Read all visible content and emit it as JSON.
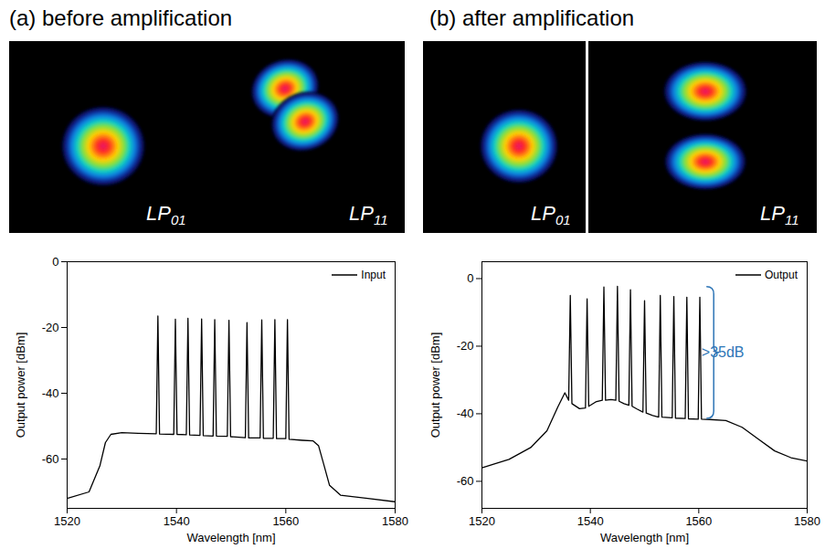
{
  "chart_data": [
    {
      "type": "line",
      "title": "(a) before amplification",
      "xlabel": "Wavelength [nm]",
      "ylabel": "Output power [dBm]",
      "xlim": [
        1520,
        1580
      ],
      "xticks": [
        1520,
        1540,
        1560,
        1580
      ],
      "ylim": [
        -75,
        0
      ],
      "yticks": [
        -60,
        -40,
        -20,
        0
      ],
      "legend": "top-right",
      "x": [
        1520,
        1524,
        1526,
        1527,
        1528,
        1530,
        1533,
        1536.3,
        1536.6,
        1536.9,
        1539.5,
        1539.8,
        1540.1,
        1541.8,
        1542.1,
        1542.4,
        1544.3,
        1544.6,
        1544.9,
        1546.7,
        1547.0,
        1547.3,
        1549.3,
        1549.6,
        1549.9,
        1552.6,
        1552.9,
        1553.2,
        1555.3,
        1555.6,
        1555.9,
        1557.7,
        1558.0,
        1558.3,
        1560.0,
        1560.3,
        1560.6,
        1563,
        1565,
        1566,
        1567,
        1568,
        1570,
        1575,
        1580
      ],
      "series": [
        {
          "name": "Input",
          "color": "#000000",
          "values": [
            -72,
            -70,
            -62,
            -55,
            -52.5,
            -52,
            -52.2,
            -52.3,
            -16.5,
            -52.4,
            -52.5,
            -17.5,
            -52.5,
            -52.6,
            -17.2,
            -52.7,
            -52.8,
            -17.4,
            -52.9,
            -53.0,
            -17.6,
            -53.0,
            -53.1,
            -17.8,
            -53.2,
            -53.5,
            -18.5,
            -53.6,
            -53.6,
            -17.7,
            -53.7,
            -53.7,
            -17.6,
            -53.8,
            -53.8,
            -17.6,
            -54.0,
            -54.3,
            -54.5,
            -56,
            -62,
            -68,
            -71,
            -72,
            -73
          ]
        }
      ],
      "annotations": [
        {
          "text": "LP01"
        },
        {
          "text": "LP11"
        }
      ]
    },
    {
      "type": "line",
      "title": "(b) after amplification",
      "xlabel": "Wavelength [nm]",
      "ylabel": "Output power [dBm]",
      "xlim": [
        1520,
        1580
      ],
      "xticks": [
        1520,
        1540,
        1560,
        1580
      ],
      "ylim": [
        -68,
        5
      ],
      "yticks": [
        -60,
        -40,
        -20,
        0
      ],
      "legend": "top-right",
      "x": [
        1520,
        1525,
        1529,
        1532,
        1534,
        1535.3,
        1536.0,
        1536.3,
        1536.6,
        1538,
        1539.1,
        1539.4,
        1539.7,
        1541,
        1542.2,
        1542.5,
        1542.8,
        1543.8,
        1544.7,
        1545.0,
        1545.3,
        1546.2,
        1547.1,
        1547.4,
        1547.7,
        1548.6,
        1549.7,
        1550.0,
        1550.3,
        1551.5,
        1552.6,
        1552.9,
        1553.2,
        1555.1,
        1555.4,
        1555.7,
        1557.5,
        1557.8,
        1558.1,
        1559.9,
        1560.2,
        1560.5,
        1562,
        1565,
        1568,
        1571,
        1574,
        1577,
        1580
      ],
      "series": [
        {
          "name": "Output",
          "color": "#000000",
          "values": [
            -56,
            -53.5,
            -50,
            -45,
            -38,
            -33.8,
            -36,
            -5,
            -37,
            -38.5,
            -38.3,
            -6,
            -37.8,
            -36.5,
            -36,
            -2.5,
            -36,
            -35.8,
            -36,
            -2.3,
            -36.3,
            -37,
            -37.5,
            -3.3,
            -37.8,
            -38.6,
            -39.5,
            -6.5,
            -39.8,
            -40.5,
            -41,
            -5,
            -41,
            -41.2,
            -5.3,
            -41.3,
            -41.4,
            -5.5,
            -41.5,
            -41.6,
            -5.5,
            -41.6,
            -41.7,
            -42,
            -44,
            -47.5,
            -51,
            -53,
            -54
          ]
        }
      ],
      "annotations": [
        {
          "text": "LP01"
        },
        {
          "text": "LP11"
        },
        {
          "text": ">35dB",
          "x": 1562,
          "y": [
            -2.5,
            -41.5
          ],
          "color": "#2e75b6"
        }
      ]
    }
  ]
}
